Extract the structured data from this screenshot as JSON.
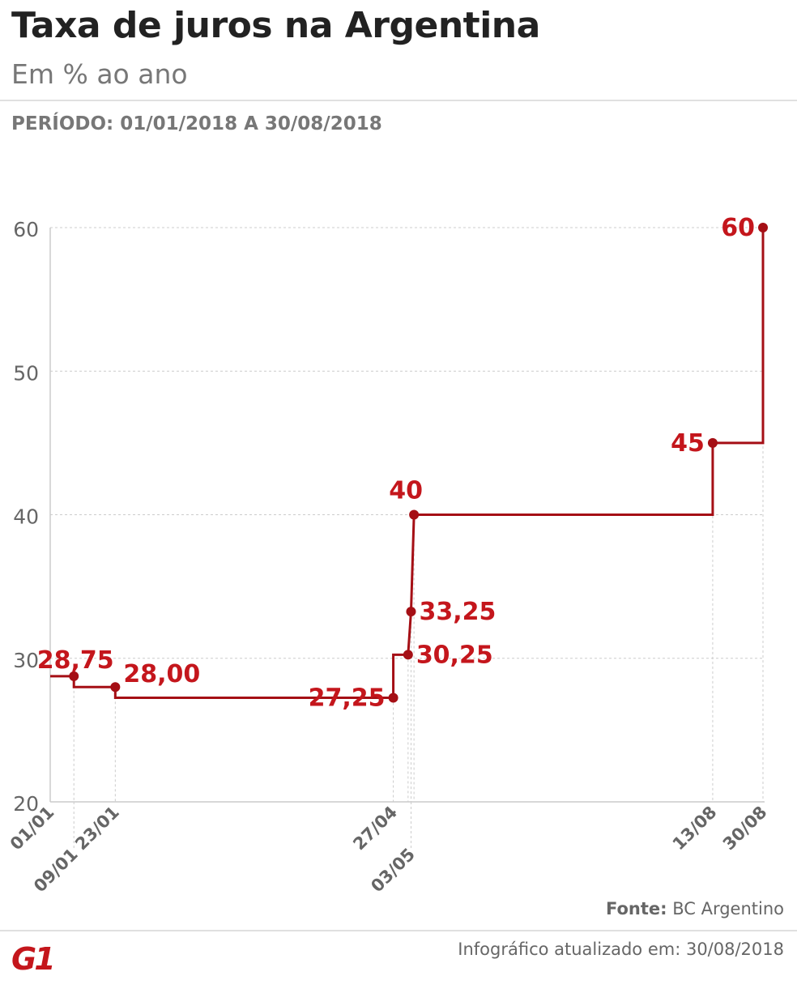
{
  "header": {
    "title": "Taxa de juros na Argentina",
    "subtitle": "Em % ao ano",
    "period": "PERÍODO: 01/01/2018 A 30/08/2018"
  },
  "footer": {
    "source_label": "Fonte:",
    "source": "BC Argentino",
    "updated": "Infográfico atualizado em: 30/08/2018",
    "logo": "G1"
  },
  "colors": {
    "line": "#a50f15",
    "label": "#c4161c",
    "axis": "#666666",
    "grid": "#cccccc",
    "logo": "#c4161c"
  },
  "chart_data": {
    "type": "line",
    "step": true,
    "year": 2018,
    "title": "Taxa de juros na Argentina",
    "ylim": [
      20,
      60
    ],
    "yticks": [
      20,
      30,
      40,
      50,
      60
    ],
    "xlim": [
      "01/01",
      "30/08"
    ],
    "xticks": [
      "01/01",
      "09/01",
      "23/01",
      "27/04",
      "03/05",
      "13/08",
      "30/08"
    ],
    "grid": true,
    "line": {
      "x": [
        "01/01",
        "09/01",
        "09/01",
        "23/01",
        "23/01",
        "27/04",
        "27/04",
        "02/05",
        "03/05",
        "04/05",
        "13/08",
        "13/08",
        "30/08",
        "30/08"
      ],
      "y": [
        28.75,
        28.75,
        28.0,
        28.0,
        27.25,
        27.25,
        30.25,
        30.25,
        33.25,
        40,
        40,
        45,
        45,
        60
      ]
    },
    "markers": [
      {
        "x": "09/01",
        "y": 28.75,
        "label": "28,75"
      },
      {
        "x": "23/01",
        "y": 28.0,
        "label": "28,00"
      },
      {
        "x": "27/04",
        "y": 27.25,
        "label": "27,25"
      },
      {
        "x": "02/05",
        "y": 30.25,
        "label": "30,25"
      },
      {
        "x": "03/05",
        "y": 33.25,
        "label": "33,25"
      },
      {
        "x": "04/05",
        "y": 40,
        "label": "40"
      },
      {
        "x": "13/08",
        "y": 45,
        "label": "45"
      },
      {
        "x": "30/08",
        "y": 60,
        "label": "60"
      }
    ]
  }
}
